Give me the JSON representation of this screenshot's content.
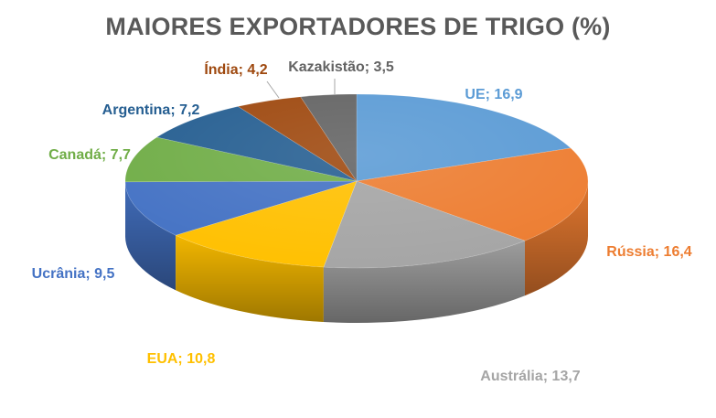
{
  "chart_data": {
    "type": "pie",
    "title": "MAIORES EXPORTADORES DE TRIGO (%)",
    "series": [
      {
        "label": "UE",
        "value": 16.9,
        "display": "UE; 16,9",
        "color": "#5B9BD5",
        "label_color": "#5B9BD5"
      },
      {
        "label": "Rússia",
        "value": 16.4,
        "display": "Rússia; 16,4",
        "color": "#ED7D31",
        "label_color": "#ED7D31"
      },
      {
        "label": "Austrália",
        "value": 13.7,
        "display": "Austrália; 13,7",
        "color": "#A5A5A5",
        "label_color": "#A5A5A5"
      },
      {
        "label": "EUA",
        "value": 10.8,
        "display": "EUA; 10,8",
        "color": "#FFC000",
        "label_color": "#FFC000"
      },
      {
        "label": "Ucrânia",
        "value": 9.5,
        "display": "Ucrânia; 9,5",
        "color": "#4472C4",
        "label_color": "#4472C4"
      },
      {
        "label": "Canadá",
        "value": 7.7,
        "display": "Canadá; 7,7",
        "color": "#70AD47",
        "label_color": "#70AD47"
      },
      {
        "label": "Argentina",
        "value": 7.2,
        "display": "Argentina; 7,2",
        "color": "#255E91",
        "label_color": "#255E91"
      },
      {
        "label": "Índia",
        "value": 4.2,
        "display": "Índia; 4,2",
        "color": "#9E480E",
        "label_color": "#9E480E"
      },
      {
        "label": "Kazakistão",
        "value": 3.5,
        "display": "Kazakistão; 3,5",
        "color": "#636363",
        "label_color": "#636363"
      }
    ],
    "legend": "none"
  }
}
